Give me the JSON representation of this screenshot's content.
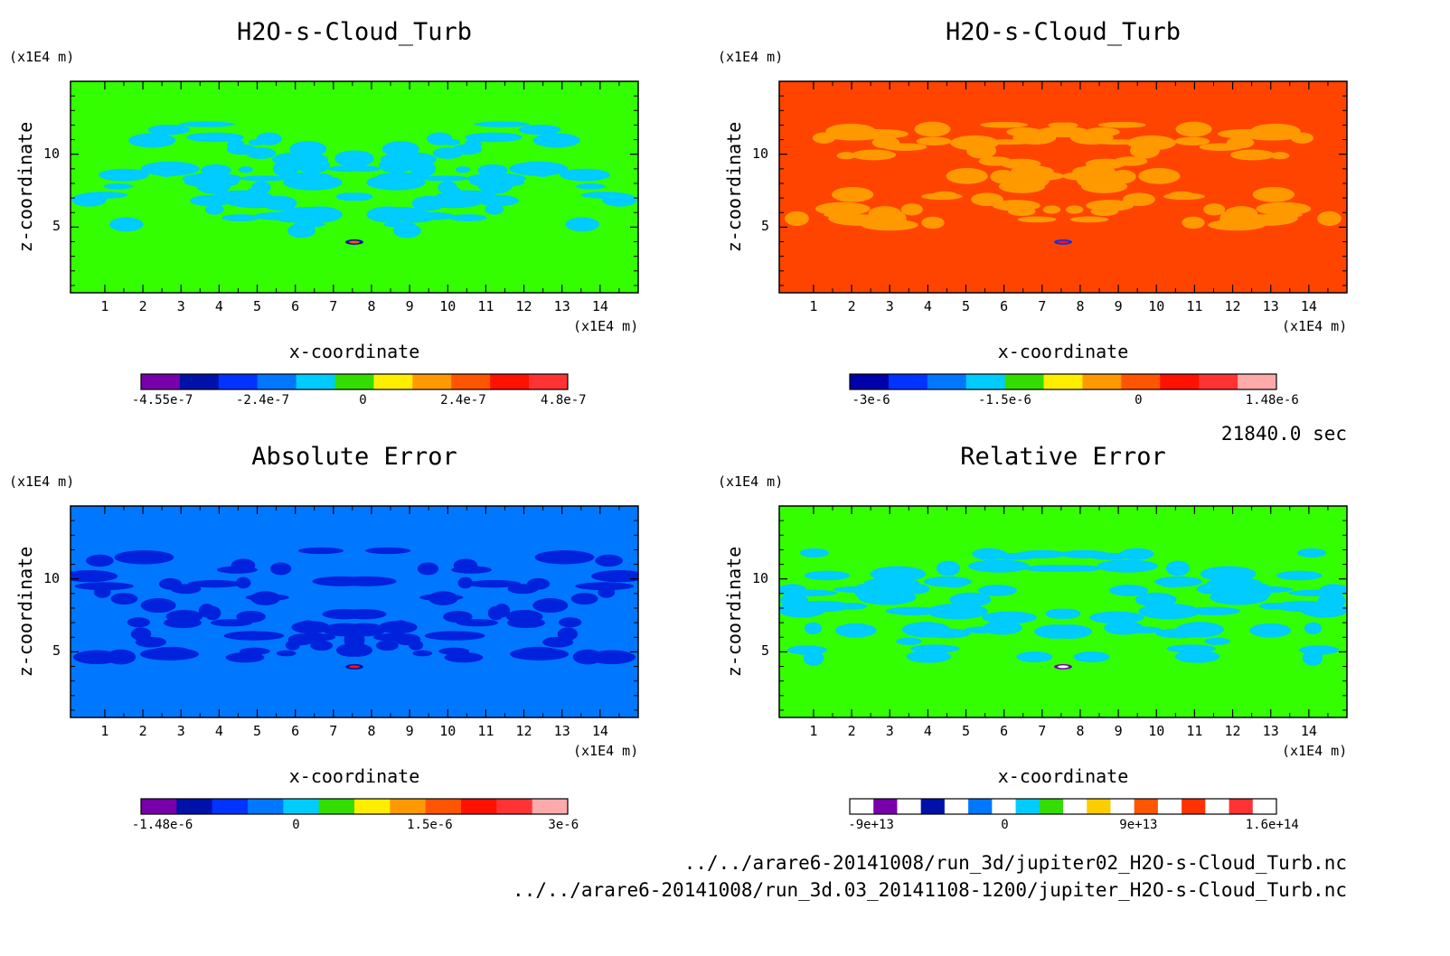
{
  "chart_data": [
    {
      "type": "heatmap",
      "title": "H2O-s-Cloud_Turb",
      "xlabel": "x-coordinate",
      "ylabel": "z-coordinate",
      "x_unit": "(x1E4 m)",
      "y_unit": "(x1E4 m)",
      "x_ticks": [
        "1",
        "2",
        "3",
        "4",
        "5",
        "6",
        "7",
        "8",
        "9",
        "10",
        "11",
        "12",
        "13",
        "14"
      ],
      "y_ticks": [
        "5",
        "10"
      ],
      "xlim": [
        0.1,
        15.0
      ],
      "ylim": [
        0.5,
        15.0
      ],
      "background_level_color": "#33ff00",
      "feature_color": "#00ccff",
      "colorbar": {
        "colors": [
          "#7700aa",
          "#0011aa",
          "#0033ff",
          "#0077ff",
          "#00ccff",
          "#33dd00",
          "#ffee00",
          "#ff9900",
          "#ff5500",
          "#ff1100",
          "#ff3333"
        ],
        "tick_labels": [
          "-4.55e-7",
          "-2.4e-7",
          "0",
          "2.4e-7",
          "4.8e-7"
        ]
      }
    },
    {
      "type": "heatmap",
      "title": "H2O-s-Cloud_Turb",
      "xlabel": "x-coordinate",
      "ylabel": "z-coordinate",
      "x_unit": "(x1E4 m)",
      "y_unit": "(x1E4 m)",
      "x_ticks": [
        "1",
        "2",
        "3",
        "4",
        "5",
        "6",
        "7",
        "8",
        "9",
        "10",
        "11",
        "12",
        "13",
        "14"
      ],
      "y_ticks": [
        "5",
        "10"
      ],
      "xlim": [
        0.1,
        15.0
      ],
      "ylim": [
        0.5,
        15.0
      ],
      "background_level_color": "#ff4400",
      "feature_color": "#ff9900",
      "colorbar": {
        "colors": [
          "#0000aa",
          "#0033ff",
          "#0077ff",
          "#00ccff",
          "#33dd00",
          "#ffee00",
          "#ff9900",
          "#ff5500",
          "#ff1100",
          "#ff3333",
          "#ffaaaa"
        ],
        "tick_labels": [
          "-3e-6",
          "-1.5e-6",
          "0",
          "1.48e-6"
        ]
      }
    },
    {
      "type": "heatmap",
      "title": "Absolute Error",
      "xlabel": "x-coordinate",
      "ylabel": "z-coordinate",
      "x_unit": "(x1E4 m)",
      "y_unit": "(x1E4 m)",
      "x_ticks": [
        "1",
        "2",
        "3",
        "4",
        "5",
        "6",
        "7",
        "8",
        "9",
        "10",
        "11",
        "12",
        "13",
        "14"
      ],
      "y_ticks": [
        "5",
        "10"
      ],
      "xlim": [
        0.1,
        15.0
      ],
      "ylim": [
        0.5,
        15.0
      ],
      "background_level_color": "#0077ff",
      "feature_color": "#0022dd",
      "colorbar": {
        "colors": [
          "#7700aa",
          "#0011aa",
          "#0033ff",
          "#0077ff",
          "#00ccff",
          "#33dd00",
          "#ffee00",
          "#ff9900",
          "#ff5500",
          "#ff1100",
          "#ff3333",
          "#ffaaaa"
        ],
        "tick_labels": [
          "-1.48e-6",
          "0",
          "1.5e-6",
          "3e-6"
        ]
      }
    },
    {
      "type": "heatmap",
      "title": "Relative Error",
      "xlabel": "x-coordinate",
      "ylabel": "z-coordinate",
      "x_unit": "(x1E4 m)",
      "y_unit": "(x1E4 m)",
      "x_ticks": [
        "1",
        "2",
        "3",
        "4",
        "5",
        "6",
        "7",
        "8",
        "9",
        "10",
        "11",
        "12",
        "13",
        "14"
      ],
      "y_ticks": [
        "5",
        "10"
      ],
      "xlim": [
        0.1,
        15.0
      ],
      "ylim": [
        0.5,
        15.0
      ],
      "background_level_color": "#33ff00",
      "feature_color": "#00ccff",
      "colorbar": {
        "colors": [
          "#ffffff",
          "#7700aa",
          "#ffffff",
          "#0011aa",
          "#ffffff",
          "#0077ff",
          "#ffffff",
          "#00ccff",
          "#33dd00",
          "#ffffff",
          "#ffcc00",
          "#ffffff",
          "#ff5500",
          "#ffffff",
          "#ff3300",
          "#ffffff",
          "#ff3333",
          "#ffffff"
        ],
        "tick_labels": [
          "-9e+13",
          "0",
          "9e+13",
          "1.6e+14"
        ]
      }
    }
  ],
  "time_label": "21840.0 sec",
  "files": [
    "../../arare6-20141008/run_3d/jupiter02_H2O-s-Cloud_Turb.nc",
    "../../arare6-20141008/run_3d.03_20141108-1200/jupiter_H2O-s-Cloud_Turb.nc"
  ]
}
